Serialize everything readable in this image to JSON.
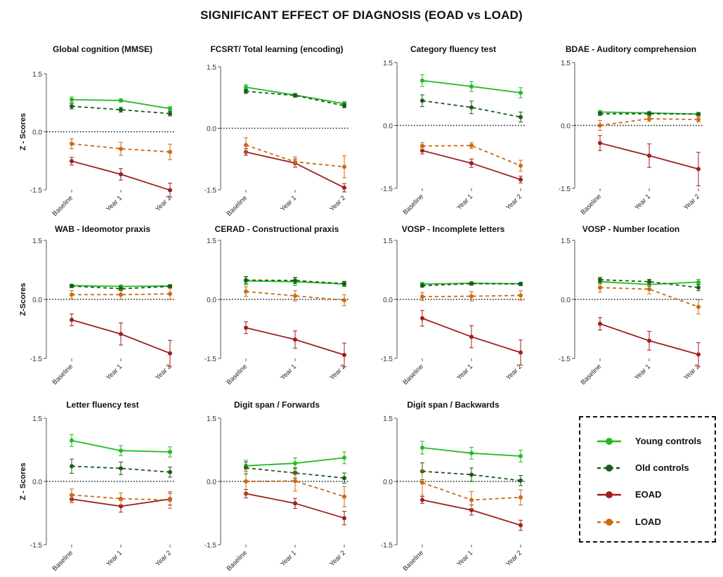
{
  "title": "SIGNIFICANT EFFECT OF DIAGNOSIS (EOAD vs LOAD)",
  "legend": [
    {
      "key": "young",
      "label": "Young controls",
      "color": "#22bb22",
      "dashed": false
    },
    {
      "key": "old",
      "label": "Old  controls",
      "color": "#1a5c1a",
      "dashed": true
    },
    {
      "key": "eoad",
      "label": "EOAD",
      "color": "#a01e1e",
      "dashed": false
    },
    {
      "key": "load",
      "label": "LOAD",
      "color": "#cc6a10",
      "dashed": true
    }
  ],
  "chart_data": [
    {
      "type": "line",
      "title": "Global cognition (MMSE)",
      "ylabel": "Z - Scores",
      "categories": [
        "Baseline",
        "Year 1",
        "Year 2"
      ],
      "ylim": [
        -1.5,
        1.5
      ],
      "yticks": [
        "1.5",
        "0.0",
        "-1.5"
      ],
      "series": [
        {
          "name": "Young controls",
          "values": [
            0.83,
            0.81,
            0.6
          ],
          "errors": [
            0.07,
            0.04,
            0.05
          ]
        },
        {
          "name": "Old  controls",
          "values": [
            0.66,
            0.57,
            0.47
          ],
          "errors": [
            0.07,
            0.06,
            0.06
          ]
        },
        {
          "name": "EOAD",
          "values": [
            -0.76,
            -1.1,
            -1.51
          ],
          "errors": [
            0.1,
            0.15,
            0.18
          ]
        },
        {
          "name": "LOAD",
          "values": [
            -0.31,
            -0.44,
            -0.52
          ],
          "errors": [
            0.13,
            0.17,
            0.2
          ]
        }
      ]
    },
    {
      "type": "line",
      "title": "FCSRT/ Total learning (encoding)",
      "ylabel": "",
      "categories": [
        "Baseline",
        "Year 1",
        "Year 2"
      ],
      "ylim": [
        -1.5,
        1.5
      ],
      "yticks": [
        "1.5",
        "0.0",
        "-1.5"
      ],
      "series": [
        {
          "name": "Young controls",
          "values": [
            1.0,
            0.81,
            0.6
          ],
          "errors": [
            0.06,
            0.04,
            0.05
          ]
        },
        {
          "name": "Old  controls",
          "values": [
            0.9,
            0.8,
            0.55
          ],
          "errors": [
            0.05,
            0.04,
            0.05
          ]
        },
        {
          "name": "EOAD",
          "values": [
            -0.58,
            -0.85,
            -1.45
          ],
          "errors": [
            0.08,
            0.1,
            0.1
          ]
        },
        {
          "name": "LOAD",
          "values": [
            -0.41,
            -0.82,
            -0.94
          ],
          "errors": [
            0.18,
            0.12,
            0.27
          ]
        }
      ]
    },
    {
      "type": "line",
      "title": "Category fluency test",
      "ylabel": "",
      "categories": [
        "Baseline",
        "Year 1",
        "Year 2"
      ],
      "ylim": [
        -1.5,
        1.5
      ],
      "yticks": [
        "1.5",
        "0.0",
        "-1.5"
      ],
      "series": [
        {
          "name": "Young controls",
          "values": [
            1.07,
            0.93,
            0.78
          ],
          "errors": [
            0.14,
            0.12,
            0.12
          ]
        },
        {
          "name": "Old  controls",
          "values": [
            0.59,
            0.43,
            0.2
          ],
          "errors": [
            0.14,
            0.15,
            0.12
          ]
        },
        {
          "name": "EOAD",
          "values": [
            -0.6,
            -0.9,
            -1.29
          ],
          "errors": [
            0.08,
            0.1,
            0.08
          ]
        },
        {
          "name": "LOAD",
          "values": [
            -0.49,
            -0.48,
            -0.96
          ],
          "errors": [
            0.08,
            0.07,
            0.13
          ]
        }
      ]
    },
    {
      "type": "line",
      "title": "BDAE - Auditory comprehension",
      "ylabel": "",
      "categories": [
        "Baseline",
        "Year 1",
        "Year 2"
      ],
      "ylim": [
        -1.5,
        1.5
      ],
      "yticks": [
        "1.5",
        "0.0",
        "-1.5"
      ],
      "series": [
        {
          "name": "Young controls",
          "values": [
            0.32,
            0.3,
            0.27
          ],
          "errors": [
            0.03,
            0.03,
            0.03
          ]
        },
        {
          "name": "Old  controls",
          "values": [
            0.28,
            0.28,
            0.27
          ],
          "errors": [
            0.04,
            0.04,
            0.04
          ]
        },
        {
          "name": "EOAD",
          "values": [
            -0.42,
            -0.72,
            -1.04
          ],
          "errors": [
            0.18,
            0.28,
            0.4
          ]
        },
        {
          "name": "LOAD",
          "values": [
            0.0,
            0.16,
            0.14
          ],
          "errors": [
            0.12,
            0.06,
            0.06
          ]
        }
      ]
    },
    {
      "type": "line",
      "title": "WAB - Ideomotor praxis",
      "ylabel": "Z-Scores",
      "categories": [
        "Baseline",
        "Year 1",
        "Year 2"
      ],
      "ylim": [
        -1.5,
        1.5
      ],
      "yticks": [
        "1.5",
        "0.0",
        "-1.5"
      ],
      "series": [
        {
          "name": "Young controls",
          "values": [
            0.35,
            0.33,
            0.34
          ],
          "errors": [
            0.03,
            0.03,
            0.03
          ]
        },
        {
          "name": "Old  controls",
          "values": [
            0.34,
            0.27,
            0.33
          ],
          "errors": [
            0.04,
            0.05,
            0.04
          ]
        },
        {
          "name": "EOAD",
          "values": [
            -0.52,
            -0.88,
            -1.37
          ],
          "errors": [
            0.15,
            0.28,
            0.33
          ]
        },
        {
          "name": "LOAD",
          "values": [
            0.12,
            0.12,
            0.14
          ],
          "errors": [
            0.1,
            0.12,
            0.14
          ]
        }
      ]
    },
    {
      "type": "line",
      "title": "CERAD - Constructional praxis",
      "ylabel": "",
      "categories": [
        "Baseline",
        "Year 1",
        "Year 2"
      ],
      "ylim": [
        -1.5,
        1.5
      ],
      "yticks": [
        "1.5",
        "0.0",
        "-1.5"
      ],
      "series": [
        {
          "name": "Young controls",
          "values": [
            0.47,
            0.45,
            0.39
          ],
          "errors": [
            0.1,
            0.1,
            0.06
          ]
        },
        {
          "name": "Old  controls",
          "values": [
            0.49,
            0.48,
            0.4
          ],
          "errors": [
            0.09,
            0.08,
            0.06
          ]
        },
        {
          "name": "EOAD",
          "values": [
            -0.72,
            -1.02,
            -1.41
          ],
          "errors": [
            0.15,
            0.22,
            0.3
          ]
        },
        {
          "name": "LOAD",
          "values": [
            0.2,
            0.09,
            -0.02
          ],
          "errors": [
            0.12,
            0.13,
            0.14
          ]
        }
      ]
    },
    {
      "type": "line",
      "title": "VOSP - Incomplete letters",
      "ylabel": "",
      "categories": [
        "Baseline",
        "Year 1",
        "Year 2"
      ],
      "ylim": [
        -1.5,
        1.5
      ],
      "yticks": [
        "1.5",
        "0.0",
        "-1.5"
      ],
      "series": [
        {
          "name": "Young controls",
          "values": [
            0.39,
            0.41,
            0.4
          ],
          "errors": [
            0.04,
            0.03,
            0.03
          ]
        },
        {
          "name": "Old  controls",
          "values": [
            0.35,
            0.4,
            0.39
          ],
          "errors": [
            0.04,
            0.04,
            0.04
          ]
        },
        {
          "name": "EOAD",
          "values": [
            -0.48,
            -0.95,
            -1.35
          ],
          "errors": [
            0.2,
            0.28,
            0.32
          ]
        },
        {
          "name": "LOAD",
          "values": [
            0.07,
            0.08,
            0.1
          ],
          "errors": [
            0.1,
            0.12,
            0.12
          ]
        }
      ]
    },
    {
      "type": "line",
      "title": "VOSP - Number location",
      "ylabel": "",
      "categories": [
        "Baseline",
        "Year 1",
        "Year 2"
      ],
      "ylim": [
        -1.5,
        1.5
      ],
      "yticks": [
        "1.5",
        "0.0",
        "-1.5"
      ],
      "series": [
        {
          "name": "Young controls",
          "values": [
            0.45,
            0.38,
            0.44
          ],
          "errors": [
            0.06,
            0.05,
            0.07
          ]
        },
        {
          "name": "Old  controls",
          "values": [
            0.5,
            0.45,
            0.3
          ],
          "errors": [
            0.06,
            0.06,
            0.08
          ]
        },
        {
          "name": "EOAD",
          "values": [
            -0.62,
            -1.05,
            -1.4
          ],
          "errors": [
            0.16,
            0.24,
            0.3
          ]
        },
        {
          "name": "LOAD",
          "values": [
            0.3,
            0.26,
            -0.19
          ],
          "errors": [
            0.12,
            0.12,
            0.18
          ]
        }
      ]
    },
    {
      "type": "line",
      "title": "Letter fluency test",
      "ylabel": "Z - Scores",
      "categories": [
        "Baseline",
        "Year 1",
        "Year 2"
      ],
      "ylim": [
        -1.5,
        1.5
      ],
      "yticks": [
        "1.5",
        "0.0",
        "-1.5"
      ],
      "series": [
        {
          "name": "Young controls",
          "values": [
            0.97,
            0.73,
            0.7
          ],
          "errors": [
            0.14,
            0.12,
            0.12
          ]
        },
        {
          "name": "Old  controls",
          "values": [
            0.36,
            0.31,
            0.22
          ],
          "errors": [
            0.17,
            0.15,
            0.12
          ]
        },
        {
          "name": "EOAD",
          "values": [
            -0.42,
            -0.59,
            -0.42
          ],
          "errors": [
            0.08,
            0.14,
            0.14
          ]
        },
        {
          "name": "LOAD",
          "values": [
            -0.32,
            -0.41,
            -0.44
          ],
          "errors": [
            0.14,
            0.14,
            0.2
          ]
        }
      ]
    },
    {
      "type": "line",
      "title": "Digit span / Forwards",
      "ylabel": "",
      "categories": [
        "Baseline",
        "Year 1",
        "Year 2"
      ],
      "ylim": [
        -1.5,
        1.5
      ],
      "yticks": [
        "1.5",
        "0.0",
        "-1.5"
      ],
      "series": [
        {
          "name": "Young controls",
          "values": [
            0.37,
            0.43,
            0.56
          ],
          "errors": [
            0.13,
            0.13,
            0.14
          ]
        },
        {
          "name": "Old  controls",
          "values": [
            0.32,
            0.2,
            0.08
          ],
          "errors": [
            0.14,
            0.12,
            0.12
          ]
        },
        {
          "name": "EOAD",
          "values": [
            -0.29,
            -0.52,
            -0.87
          ],
          "errors": [
            0.1,
            0.12,
            0.16
          ]
        },
        {
          "name": "LOAD",
          "values": [
            0.0,
            0.01,
            -0.36
          ],
          "errors": [
            0.3,
            0.24,
            0.24
          ]
        }
      ]
    },
    {
      "type": "line",
      "title": "Digit span / Backwards",
      "ylabel": "",
      "categories": [
        "Baseline",
        "Year 1",
        "Year 2"
      ],
      "ylim": [
        -1.5,
        1.5
      ],
      "yticks": [
        "1.5",
        "0.0",
        "-1.5"
      ],
      "series": [
        {
          "name": "Young controls",
          "values": [
            0.8,
            0.67,
            0.6
          ],
          "errors": [
            0.15,
            0.14,
            0.14
          ]
        },
        {
          "name": "Old  controls",
          "values": [
            0.24,
            0.16,
            0.02
          ],
          "errors": [
            0.2,
            0.16,
            0.12
          ]
        },
        {
          "name": "EOAD",
          "values": [
            -0.44,
            -0.68,
            -1.04
          ],
          "errors": [
            0.08,
            0.12,
            0.12
          ]
        },
        {
          "name": "LOAD",
          "values": [
            -0.03,
            -0.44,
            -0.38
          ],
          "errors": [
            0.3,
            0.2,
            0.18
          ]
        }
      ]
    }
  ]
}
